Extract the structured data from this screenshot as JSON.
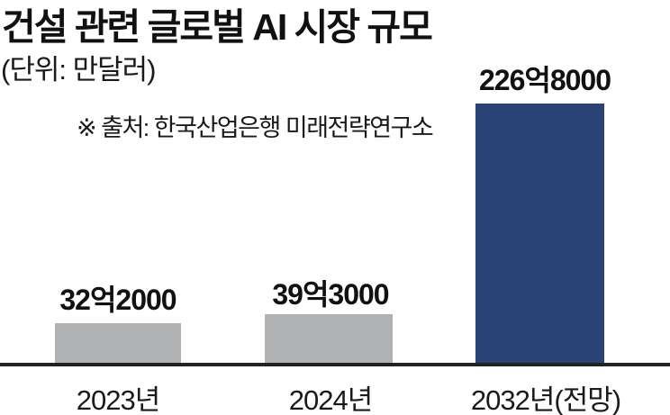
{
  "chart_data": {
    "type": "bar",
    "title": "건설 관련 글로벌 AI 시장 규모",
    "unit_label": "(단위: 만달러)",
    "source_note": "※ 출처: 한국산업은행 미래전략연구소",
    "categories": [
      "2023년",
      "2024년",
      "2032년(전망)"
    ],
    "values": [
      322000,
      393000,
      2268000
    ],
    "value_labels": [
      "32억2000",
      "39억3000",
      "226억8000"
    ],
    "highlight_index": 2,
    "legend": "none",
    "grid": false,
    "axis": {
      "x_baseline": true,
      "y_axis_visible": false
    },
    "colors": {
      "bar_default": "#b1b2b4",
      "bar_highlight": "#2a4377",
      "axis_line": "#222222",
      "text": "#111111",
      "background": "#ffffff"
    }
  }
}
